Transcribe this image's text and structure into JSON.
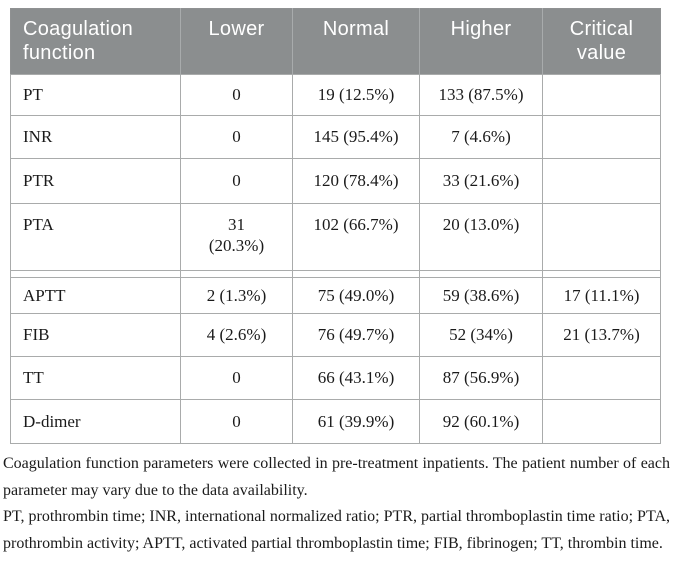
{
  "table": {
    "headers": [
      "Coagulation function",
      "Lower",
      "Normal",
      "Higher",
      "Critical value"
    ],
    "rows": [
      {
        "param": "PT",
        "lower": "0",
        "normal": "19 (12.5%)",
        "higher": "133 (87.5%)",
        "critical": ""
      },
      {
        "param": "INR",
        "lower": "0",
        "normal": "145 (95.4%)",
        "higher": "7 (4.6%)",
        "critical": ""
      },
      {
        "param": "PTR",
        "lower": "0",
        "normal": "120 (78.4%)",
        "higher": "33 (21.6%)",
        "critical": ""
      },
      {
        "param": "PTA",
        "lower": "31\n(20.3%)",
        "normal": "102 (66.7%)",
        "higher": "20 (13.0%)",
        "critical": ""
      },
      {
        "param": "APTT",
        "lower": "2 (1.3%)",
        "normal": "75 (49.0%)",
        "higher": "59 (38.6%)",
        "critical": "17 (11.1%)"
      },
      {
        "param": "FIB",
        "lower": "4 (2.6%)",
        "normal": "76 (49.7%)",
        "higher": "52 (34%)",
        "critical": "21 (13.7%)"
      },
      {
        "param": "TT",
        "lower": "0",
        "normal": "66 (43.1%)",
        "higher": "87 (56.9%)",
        "critical": ""
      },
      {
        "param": "D-dimer",
        "lower": "0",
        "normal": "61 (39.9%)",
        "higher": "92 (60.1%)",
        "critical": ""
      }
    ]
  },
  "footnotes": {
    "note1": "Coagulation function parameters were collected in pre-treatment inpatients. The patient number of each parameter may vary due to the data availability.",
    "note2": "PT, prothrombin time; INR, international normalized ratio; PTR, partial thromboplastin time ratio; PTA, prothrombin activity; APTT, activated partial thromboplastin time; FIB, fibrinogen; TT, thrombin time."
  },
  "colors": {
    "header_background": "#8b8e8f",
    "header_text": "#ffffff",
    "inner_border": "#a9abab",
    "outer_border": "#8f9192",
    "body_text": "#1a1a1a"
  }
}
